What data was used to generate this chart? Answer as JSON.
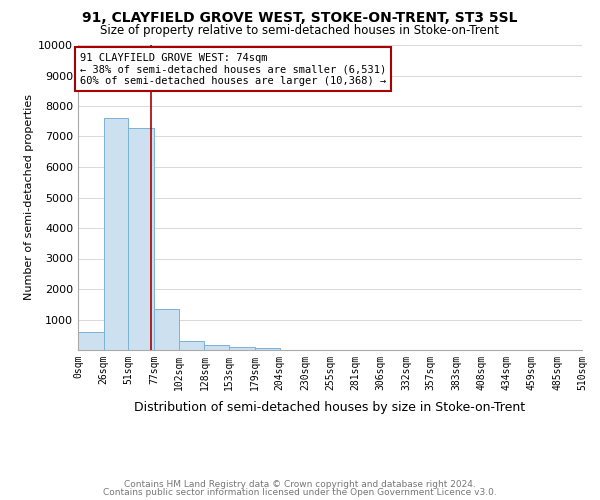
{
  "title_line1": "91, CLAYFIELD GROVE WEST, STOKE-ON-TRENT, ST3 5SL",
  "title_line2": "Size of property relative to semi-detached houses in Stoke-on-Trent",
  "xlabel": "Distribution of semi-detached houses by size in Stoke-on-Trent",
  "ylabel": "Number of semi-detached properties",
  "footer_line1": "Contains HM Land Registry data © Crown copyright and database right 2024.",
  "footer_line2": "Contains public sector information licensed under the Open Government Licence v3.0.",
  "annotation_line1": "91 CLAYFIELD GROVE WEST: 74sqm",
  "annotation_line2": "← 38% of semi-detached houses are smaller (6,531)",
  "annotation_line3": "60% of semi-detached houses are larger (10,368) →",
  "property_size": 74,
  "bar_color": "#cce0f0",
  "bar_edge_color": "#7ab3d4",
  "marker_color": "#aa0000",
  "annotation_box_edge_color": "#aa0000",
  "grid_color": "#d8d8d8",
  "bin_edges": [
    0,
    26,
    51,
    77,
    102,
    128,
    153,
    179,
    204,
    230,
    255,
    281,
    306,
    332,
    357,
    383,
    408,
    434,
    459,
    485,
    510
  ],
  "bin_labels": [
    "0sqm",
    "26sqm",
    "51sqm",
    "77sqm",
    "102sqm",
    "128sqm",
    "153sqm",
    "179sqm",
    "204sqm",
    "230sqm",
    "255sqm",
    "281sqm",
    "306sqm",
    "332sqm",
    "357sqm",
    "383sqm",
    "408sqm",
    "434sqm",
    "459sqm",
    "485sqm",
    "510sqm"
  ],
  "bar_heights": [
    580,
    7620,
    7280,
    1360,
    310,
    150,
    90,
    80,
    0,
    0,
    0,
    0,
    0,
    0,
    0,
    0,
    0,
    0,
    0,
    0
  ],
  "ylim": [
    0,
    10000
  ],
  "yticks": [
    0,
    1000,
    2000,
    3000,
    4000,
    5000,
    6000,
    7000,
    8000,
    9000,
    10000
  ]
}
